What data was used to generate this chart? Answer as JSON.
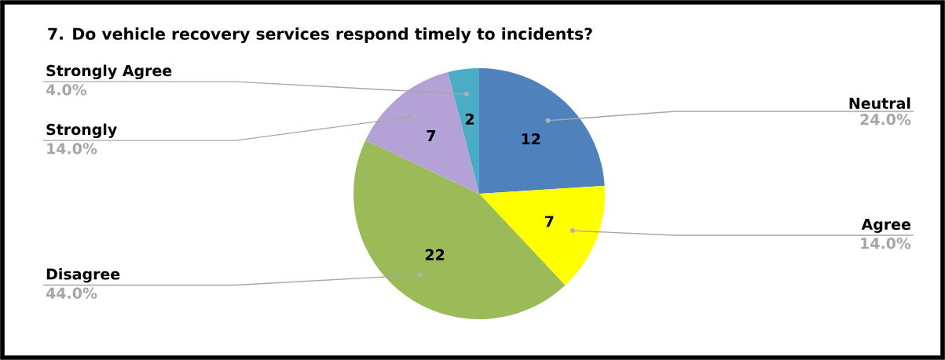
{
  "chart_data": {
    "type": "pie",
    "title": "7. Do vehicle recovery services respond timely to incidents?",
    "categories": [
      "Neutral",
      "Agree",
      "Disagree",
      "Strongly",
      "Strongly Agree"
    ],
    "values": [
      12,
      7,
      22,
      7,
      2
    ],
    "colors": [
      "#4f81bd",
      "#ffff00",
      "#9bbb59",
      "#b3a2d6",
      "#4bacc6"
    ],
    "data_labels": true,
    "annotations": [
      "24.0%",
      "14.0%",
      "44.0%",
      "14.0%",
      "4.0%"
    ]
  }
}
